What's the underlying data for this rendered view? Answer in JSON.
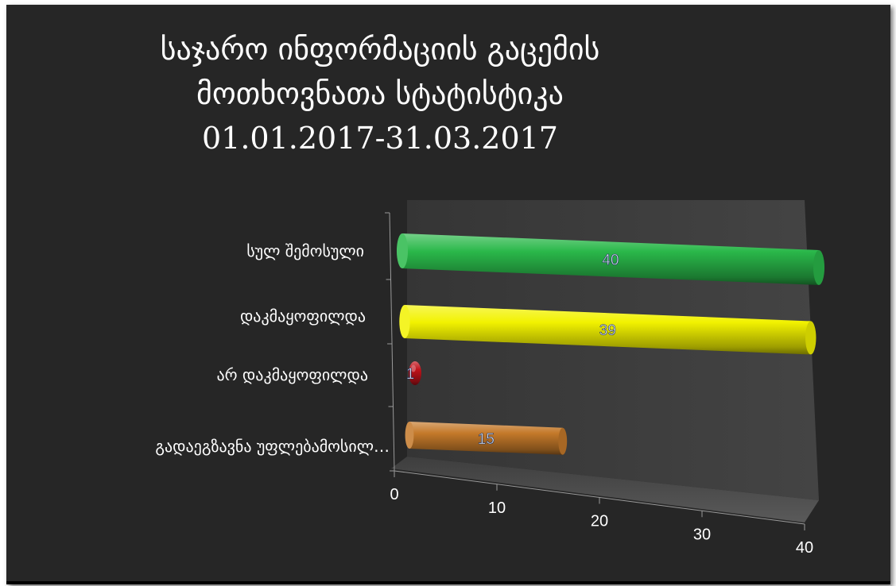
{
  "title": {
    "line1": "საჯარო ინფორმაციის გაცემის",
    "line2": "მოთხოვნათა სტატისტიკა",
    "line3": "01.01.2017-31.03.2017"
  },
  "chart_data": {
    "type": "bar",
    "orientation": "horizontal",
    "style": "3d-cylinder",
    "categories": [
      "სულ შემოსული",
      "დაკმაყოფილდა",
      "არ დაკმაყოფილდა",
      "გადაეგზავნა უფლებამოსილ…"
    ],
    "values": [
      40,
      39,
      1,
      15
    ],
    "data_labels": [
      "40",
      "39",
      "1",
      "15"
    ],
    "colors": [
      "#2ab84a",
      "#f2f200",
      "#c0121a",
      "#c4792a"
    ],
    "x_ticks": [
      "0",
      "10",
      "20",
      "30",
      "40"
    ],
    "xlim": [
      0,
      40
    ],
    "grid": false,
    "legend": "none",
    "background": "#262626",
    "wall_color": "#3a3a3a"
  }
}
